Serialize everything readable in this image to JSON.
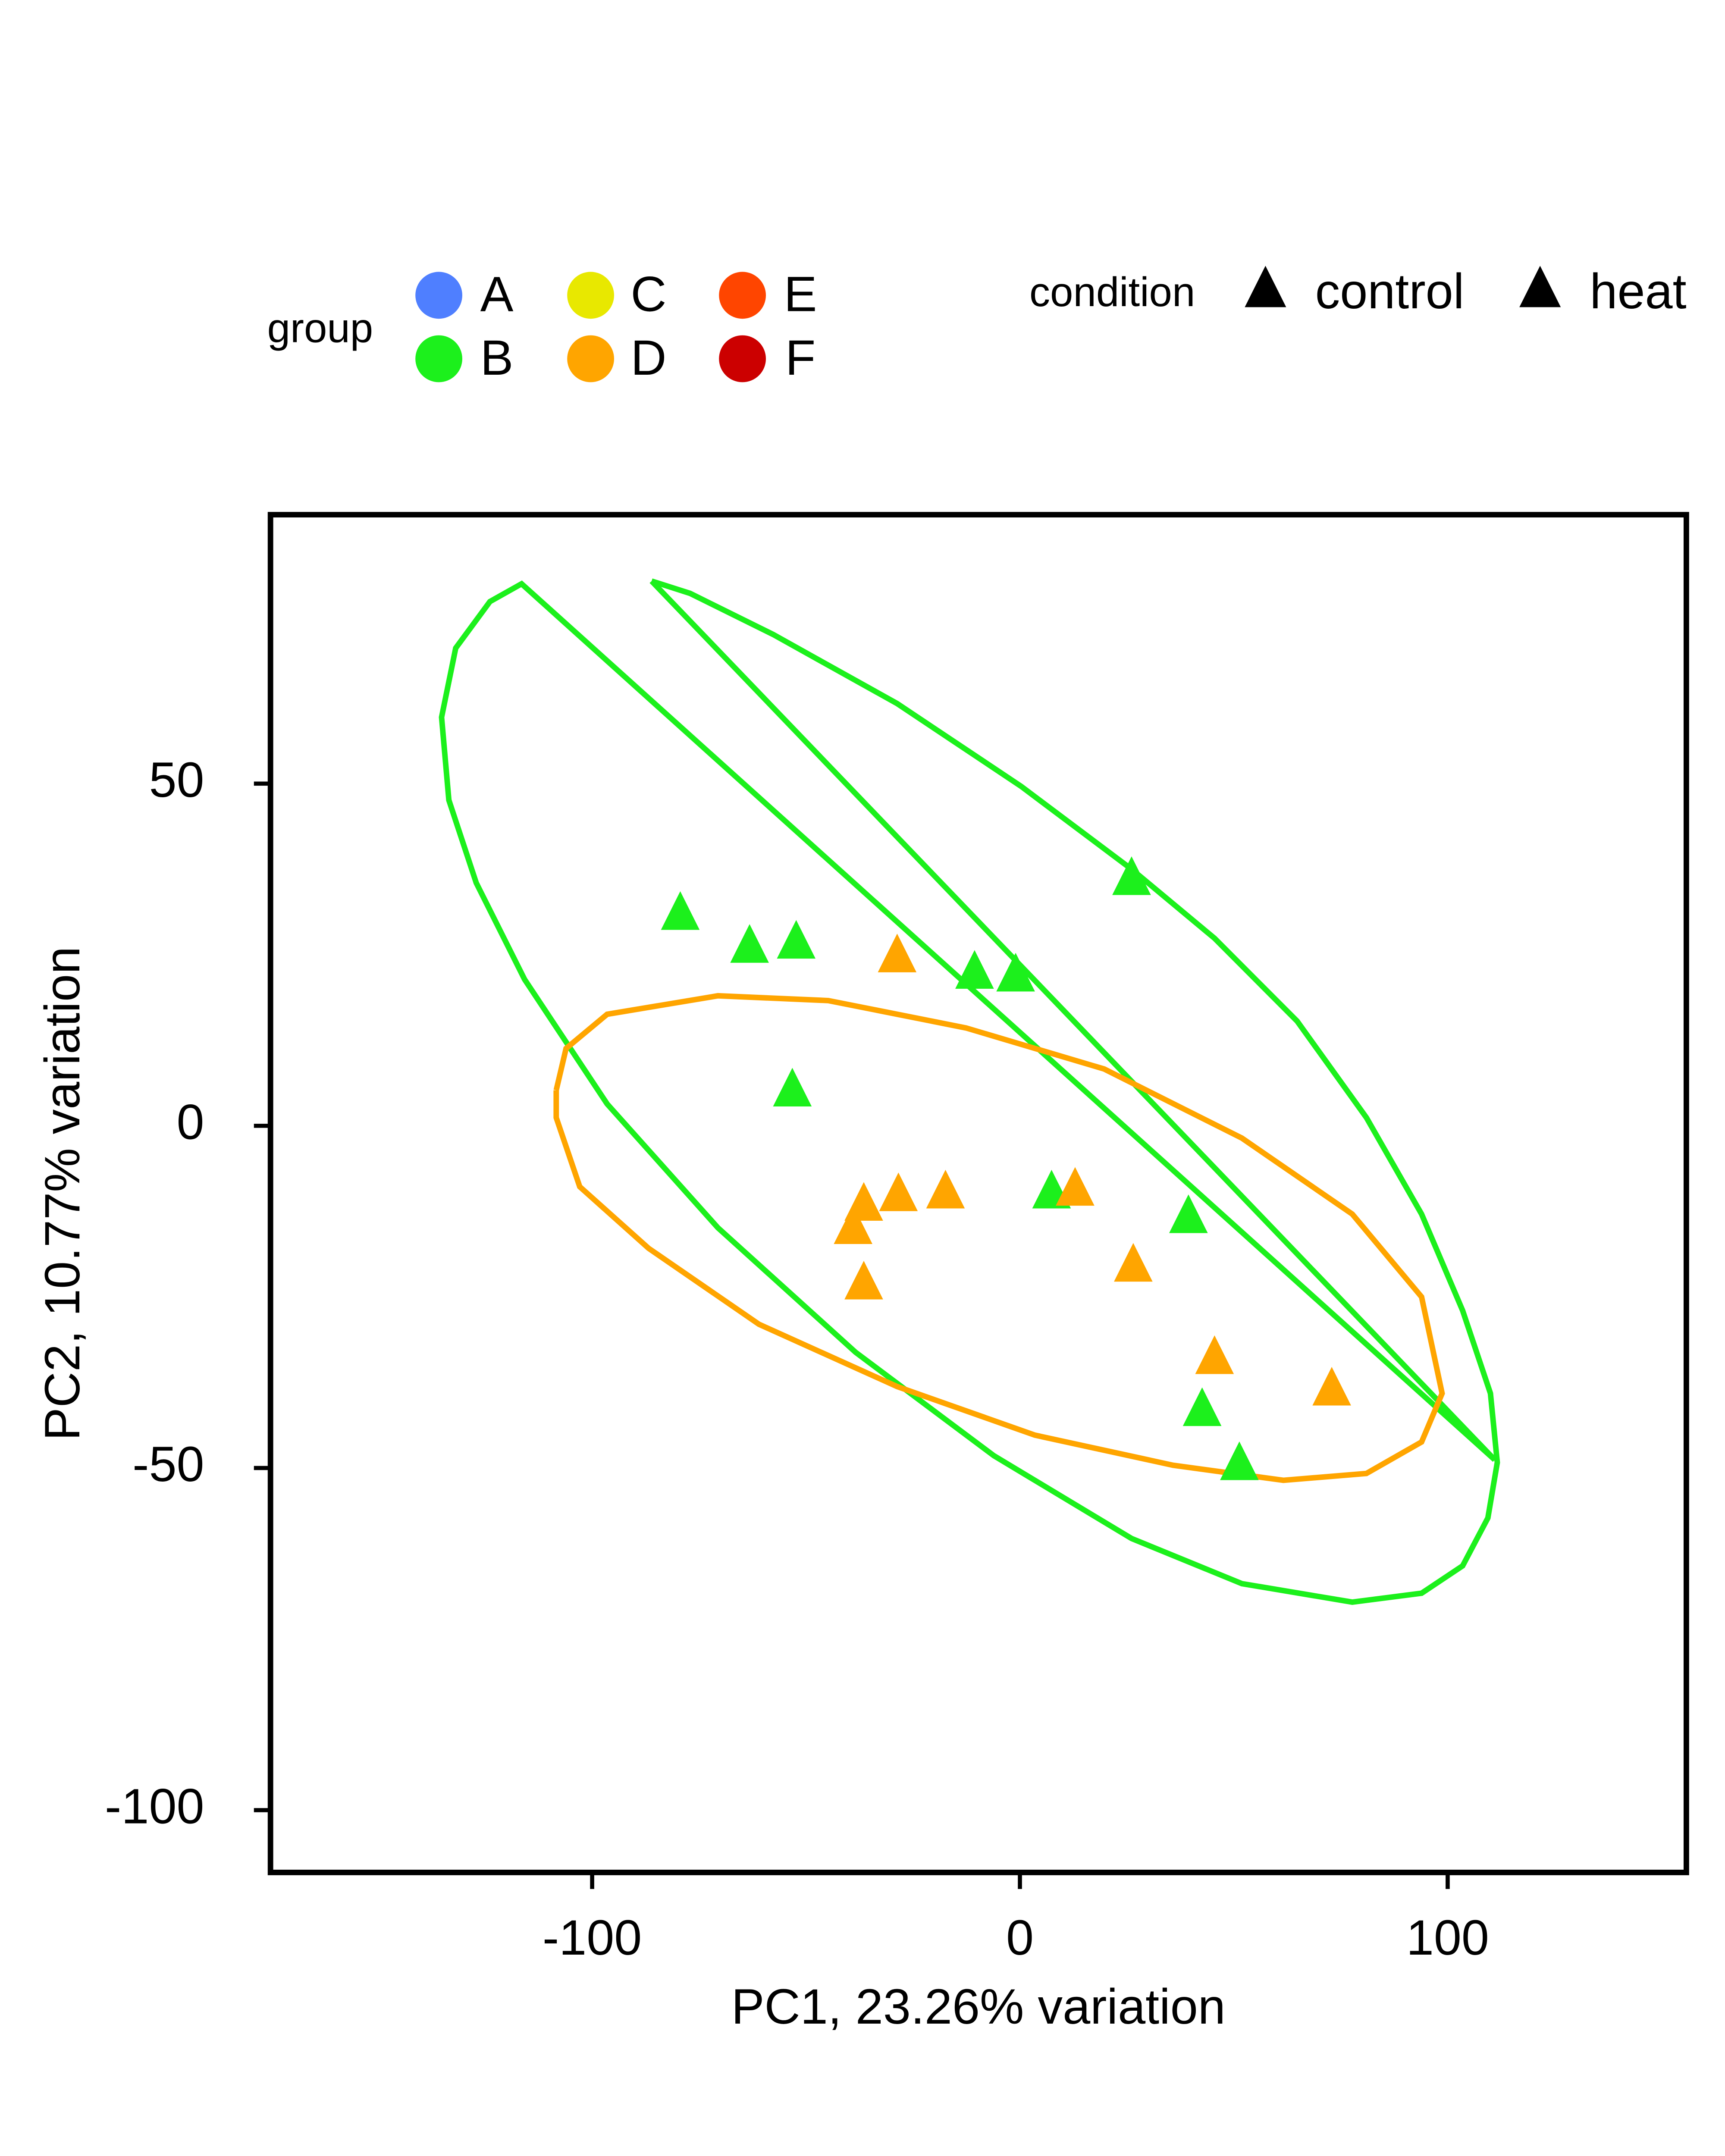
{
  "chart_data": {
    "type": "scatter",
    "x_label": "PC1, 23.26% variation",
    "y_label": "PC2, 10.77% variation",
    "xlim": [
      -175.2,
      155.8
    ],
    "ylim": [
      -109.1,
      89.3
    ],
    "xticks": [
      -100,
      0,
      100
    ],
    "yticks": [
      -100,
      -50,
      0,
      50
    ],
    "legend_title": "group",
    "condition_legend": {
      "title": "condition",
      "names": [
        "control",
        "heat"
      ],
      "color": "#000000"
    },
    "series": [
      {
        "name": "A",
        "color": "#4f7fff",
        "x": [],
        "values": []
      },
      {
        "name": "B",
        "color": "#1cf01c",
        "x": [
          -79.4,
          -63.2,
          -52.3,
          -10.6,
          -1.0,
          26.1,
          -53.2,
          7.4,
          39.4,
          42.6,
          51.3
        ],
        "values": [
          31.0,
          26.2,
          26.8,
          22.4,
          22.0,
          36.1,
          5.2,
          -9.7,
          -13.3,
          -41.5,
          -49.4
        ],
        "ellipse": {
          "x": [
            -86.1,
            111.0,
            -116.5,
            -123.9,
            -131.9,
            -135.2,
            -133.5,
            -127.1,
            -115.8,
            -96.5,
            -70.6,
            -38.4,
            -6.1,
            26.1,
            51.9,
            77.7,
            93.9,
            103.5,
            109.4,
            111.6,
            110.0,
            103.5,
            93.9,
            81.0,
            64.8,
            45.5,
            26.1,
            0.3,
            -28.7,
            -57.7,
            -77.1,
            -86.1
          ],
          "y": [
            79.6,
            -48.8,
            79.2,
            76.6,
            69.8,
            59.7,
            47.6,
            35.5,
            21.4,
            3.2,
            -14.9,
            -33.1,
            -48.2,
            -60.3,
            -66.9,
            -69.6,
            -68.3,
            -64.3,
            -57.3,
            -49.2,
            -39.1,
            -27.0,
            -12.9,
            1.2,
            15.3,
            27.4,
            37.5,
            49.6,
            61.7,
            71.8,
            77.8,
            79.6
          ]
        }
      },
      {
        "name": "C",
        "color": "#e8e800",
        "x": [],
        "values": []
      },
      {
        "name": "D",
        "color": "#ffa500",
        "x": [
          -28.7,
          -36.5,
          -28.4,
          -17.4,
          -39.0,
          -36.5,
          12.9,
          26.5,
          45.5,
          72.9
        ],
        "values": [
          24.8,
          -11.5,
          -10.1,
          -9.7,
          -14.9,
          -23.0,
          -9.3,
          -20.4,
          -33.9,
          -38.5
        ],
        "ellipse": {
          "x": [
            -108.4,
            -106.1,
            -96.5,
            -70.6,
            -44.8,
            -12.6,
            19.7,
            51.9,
            77.7,
            93.9,
            98.7,
            93.9,
            81.0,
            61.6,
            35.8,
            3.5,
            -28.7,
            -61.0,
            -86.8,
            -102.9,
            -108.4,
            -108.4
          ],
          "y": [
            5.2,
            11.3,
            16.3,
            19.0,
            18.3,
            14.3,
            8.3,
            -1.8,
            -12.9,
            -25.0,
            -39.1,
            -46.2,
            -50.8,
            -51.8,
            -49.6,
            -45.2,
            -38.1,
            -29.0,
            -17.9,
            -8.9,
            1.2,
            5.2
          ]
        }
      },
      {
        "name": "E",
        "color": "#ff4500",
        "x": [],
        "values": []
      },
      {
        "name": "F",
        "color": "#cc0000",
        "x": [],
        "values": []
      }
    ]
  }
}
